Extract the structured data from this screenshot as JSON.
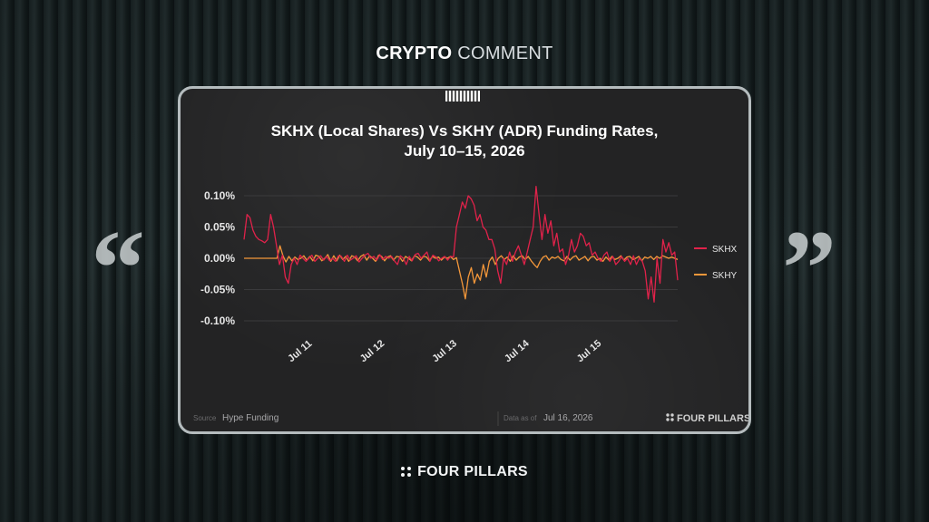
{
  "header": {
    "word1": "CRYPTO",
    "word2": "COMMENT"
  },
  "decor": {
    "quote_open": "“",
    "quote_close": "”"
  },
  "footer": {
    "brand": "FOUR PILLARS"
  },
  "card": {
    "source_label": "Source",
    "source_value": "Hype Funding",
    "date_label": "Data as of",
    "date_value": "Jul 16, 2026",
    "brand": "FOUR PILLARS"
  },
  "colors": {
    "skhx": "#e0224a",
    "skhy": "#f4973a",
    "grid": "#3a3a3c",
    "text": "#e6e6e6"
  },
  "chart_data": {
    "type": "line",
    "title": "SKHX (Local Shares) Vs SKHY (ADR) Funding Rates,",
    "subtitle": "July 10–15, 2026",
    "yticks": [
      "0.10%",
      "0.05%",
      "0.00%",
      "-0.05%",
      "-0.10%"
    ],
    "ylim": [
      -0.1,
      0.1
    ],
    "xlim": [
      0,
      6
    ],
    "xticks": [
      {
        "x": 0.8,
        "label": "Jul 11"
      },
      {
        "x": 1.8,
        "label": "Jul 12"
      },
      {
        "x": 2.8,
        "label": "Jul 13"
      },
      {
        "x": 3.8,
        "label": "Jul 14"
      },
      {
        "x": 4.8,
        "label": "Jul 15"
      }
    ],
    "grid": true,
    "legend": "right",
    "series": [
      {
        "name": "SKHX",
        "values": [
          0.03,
          0.07,
          0.065,
          0.045,
          0.035,
          0.03,
          0.028,
          0.025,
          0.03,
          0.07,
          0.05,
          0.02,
          -0.01,
          0.005,
          -0.03,
          -0.04,
          -0.01,
          0,
          -0.01,
          0.005,
          0,
          -0.005,
          0,
          0.005,
          -0.005,
          0,
          0.004,
          -0.003,
          0.003,
          -0.004,
          0,
          -0.005,
          0.004,
          0.003,
          -0.005,
          0.005,
          -0.003,
          0,
          0.004,
          -0.006,
          0,
          0.005,
          0.008,
          0,
          0.003,
          -0.003,
          0.006,
          -0.002,
          0.003,
          0,
          0.003,
          -0.004,
          -0.01,
          0.004,
          0,
          -0.01,
          0.003,
          -0.004,
          0.006,
          0.008,
          0,
          0.005,
          0.01,
          -0.005,
          0.005,
          0.002,
          -0.004,
          0,
          0.003,
          -0.003,
          0.003,
          0.002,
          0.05,
          0.07,
          0.09,
          0.08,
          0.1,
          0.095,
          0.085,
          0.06,
          0.07,
          0.05,
          0.045,
          0.03,
          0.03,
          0.015,
          -0.02,
          -0.04,
          0,
          -0.01,
          0.01,
          -0.005,
          0.01,
          0.02,
          0.005,
          -0.01,
          0.01,
          0.03,
          0.05,
          0.115,
          0.07,
          0.03,
          0.07,
          0.04,
          0.06,
          0.02,
          0.04,
          0.01,
          0.015,
          -0.01,
          0.005,
          0.03,
          0.01,
          0.02,
          0.04,
          0.035,
          0.02,
          0.025,
          0.005,
          0.01,
          0,
          -0.005,
          0.005,
          0.01,
          -0.005,
          0.003,
          -0.01,
          -0.005,
          0.003,
          -0.005,
          0,
          -0.01,
          0.004,
          -0.01,
          0,
          -0.005,
          -0.02,
          -0.065,
          -0.03,
          -0.07,
          0,
          -0.04,
          0.03,
          0.01,
          0.025,
          0.005,
          0.01,
          -0.035
        ]
      },
      {
        "name": "SKHY",
        "values": [
          0,
          0,
          0,
          0,
          0,
          0,
          0,
          0,
          0,
          0,
          0,
          0,
          0.02,
          0.004,
          -0.006,
          0.003,
          -0.004,
          0.002,
          -0.002,
          0,
          0.004,
          -0.003,
          0.003,
          -0.004,
          0.005,
          0.003,
          -0.004,
          0,
          0.006,
          -0.005,
          0.004,
          -0.004,
          0.005,
          -0.002,
          0.003,
          -0.005,
          0.004,
          0.002,
          -0.004,
          0.003,
          0.006,
          -0.003,
          0.004,
          0,
          -0.005,
          0.005,
          0.003,
          -0.004,
          0.002,
          0.004,
          -0.003,
          0.003,
          0.002,
          -0.005,
          0.003,
          0,
          -0.004,
          0.004,
          0.002,
          -0.003,
          0.003,
          0.002,
          -0.004,
          0.003,
          0,
          0.002,
          -0.003,
          0.002,
          0,
          0.003,
          -0.002,
          0.001,
          -0.02,
          -0.04,
          -0.065,
          -0.03,
          -0.015,
          -0.04,
          -0.025,
          -0.035,
          -0.01,
          -0.03,
          -0.005,
          0.002,
          -0.01,
          0,
          0.004,
          -0.002,
          0.002,
          -0.005,
          0.004,
          -0.003,
          0.002,
          0.004,
          -0.002,
          0.003,
          -0.004,
          -0.01,
          -0.015,
          -0.005,
          0.002,
          0.004,
          -0.003,
          0.002,
          0,
          0.003,
          -0.002,
          -0.004,
          0.003,
          -0.003,
          0.002,
          0.004,
          -0.003,
          0,
          0.003,
          -0.004,
          0.002,
          0.003,
          -0.003,
          0,
          -0.005,
          0.002,
          -0.003,
          0.003,
          -0.002,
          0,
          0.004,
          -0.003,
          0.002,
          0.003,
          -0.002,
          0,
          0.003,
          -0.004,
          0.002,
          0,
          0.003,
          -0.002,
          0.003,
          0,
          0.004,
          0.002,
          0,
          0.002,
          0,
          -0.002
        ]
      }
    ]
  }
}
